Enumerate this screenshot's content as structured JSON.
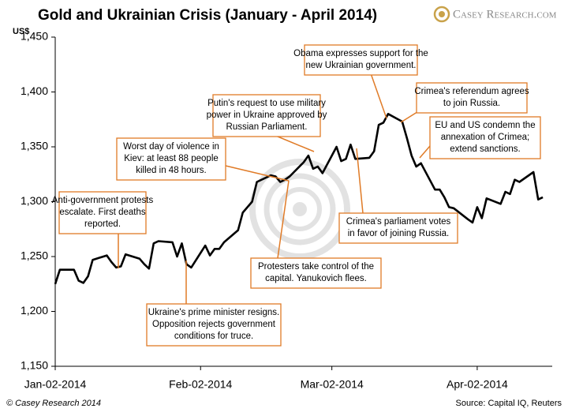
{
  "chart_data": {
    "type": "line",
    "title": "Gold and Ukrainian Crisis (January - April 2014)",
    "logo": "Casey Research.com",
    "y_label": "US$",
    "footer_left": "© Casey Research 2014",
    "footer_right": "Source: Capital IQ, Reuters",
    "x": [
      "2014-01-02",
      "2014-01-03",
      "2014-01-06",
      "2014-01-07",
      "2014-01-08",
      "2014-01-09",
      "2014-01-10",
      "2014-01-13",
      "2014-01-14",
      "2014-01-15",
      "2014-01-16",
      "2014-01-17",
      "2014-01-20",
      "2014-01-21",
      "2014-01-22",
      "2014-01-23",
      "2014-01-24",
      "2014-01-27",
      "2014-01-28",
      "2014-01-29",
      "2014-01-30",
      "2014-01-31",
      "2014-02-03",
      "2014-02-04",
      "2014-02-05",
      "2014-02-06",
      "2014-02-07",
      "2014-02-10",
      "2014-02-11",
      "2014-02-12",
      "2014-02-13",
      "2014-02-14",
      "2014-02-17",
      "2014-02-18",
      "2014-02-19",
      "2014-02-20",
      "2014-02-21",
      "2014-02-24",
      "2014-02-25",
      "2014-02-26",
      "2014-02-27",
      "2014-02-28",
      "2014-03-03",
      "2014-03-04",
      "2014-03-05",
      "2014-03-06",
      "2014-03-07",
      "2014-03-10",
      "2014-03-11",
      "2014-03-12",
      "2014-03-13",
      "2014-03-14",
      "2014-03-17",
      "2014-03-18",
      "2014-03-19",
      "2014-03-20",
      "2014-03-21",
      "2014-03-24",
      "2014-03-25",
      "2014-03-26",
      "2014-03-27",
      "2014-03-28",
      "2014-03-31",
      "2014-04-01",
      "2014-04-02",
      "2014-04-03",
      "2014-04-04",
      "2014-04-07",
      "2014-04-08",
      "2014-04-09",
      "2014-04-10",
      "2014-04-11",
      "2014-04-14",
      "2014-04-15",
      "2014-04-16"
    ],
    "series": [
      {
        "name": "Gold",
        "color": "#000000",
        "values": [
          1225,
          1238,
          1238,
          1228,
          1226,
          1232,
          1247,
          1251,
          1245,
          1240,
          1241,
          1252,
          1248,
          1243,
          1239,
          1262,
          1264,
          1263,
          1250,
          1262,
          1243,
          1240,
          1260,
          1251,
          1257,
          1257,
          1263,
          1274,
          1290,
          1295,
          1300,
          1318,
          1324,
          1323,
          1318,
          1320,
          1323,
          1336,
          1342,
          1330,
          1332,
          1326,
          1350,
          1337,
          1339,
          1352,
          1339,
          1340,
          1346,
          1370,
          1372,
          1380,
          1373,
          1358,
          1342,
          1332,
          1335,
          1311,
          1311,
          1304,
          1295,
          1294,
          1284,
          1281,
          1295,
          1285,
          1303,
          1298,
          1309,
          1307,
          1320,
          1318,
          1327,
          1302,
          1304
        ]
      }
    ],
    "xlim": [
      "2014-01-02",
      "2014-04-18"
    ],
    "xticks": [
      {
        "value": "2014-01-02",
        "label": "Jan-02-2014"
      },
      {
        "value": "2014-02-02",
        "label": "Feb-02-2014"
      },
      {
        "value": "2014-03-02",
        "label": "Mar-02-2014"
      },
      {
        "value": "2014-04-02",
        "label": "Apr-02-2014"
      }
    ],
    "ylim": [
      1150,
      1450
    ],
    "yticks": [
      {
        "value": 1150,
        "label": "1,150"
      },
      {
        "value": 1200,
        "label": "1,200"
      },
      {
        "value": 1250,
        "label": "1,250"
      },
      {
        "value": 1300,
        "label": "1,300"
      },
      {
        "value": 1350,
        "label": "1,350"
      },
      {
        "value": 1400,
        "label": "1,400"
      },
      {
        "value": 1450,
        "label": "1,450"
      }
    ],
    "annotations": [
      {
        "lines": [
          "Anti-government protests",
          "escalate. First deaths",
          "reported."
        ]
      },
      {
        "lines": [
          "Worst day of violence in",
          "Kiev: at least 88 people",
          "killed in 48 hours."
        ]
      },
      {
        "lines": [
          "Putin's  request to use military",
          "power in Ukraine approved by",
          "Russian Parliament."
        ]
      },
      {
        "lines": [
          "Obama expresses support for the",
          "new Ukrainian government."
        ]
      },
      {
        "lines": [
          "Crimea's referendum agrees",
          "to join Russia."
        ]
      },
      {
        "lines": [
          "EU and US condemn the",
          "annexation of Crimea;",
          "extend sanctions."
        ]
      },
      {
        "lines": [
          "Crimea's parliament votes",
          "in favor of joining Russia."
        ]
      },
      {
        "lines": [
          "Protesters take control of the",
          "capital. Yanukovich flees."
        ]
      },
      {
        "lines": [
          "Ukraine's prime minister resigns.",
          "Opposition rejects government",
          "conditions for truce."
        ]
      }
    ]
  }
}
